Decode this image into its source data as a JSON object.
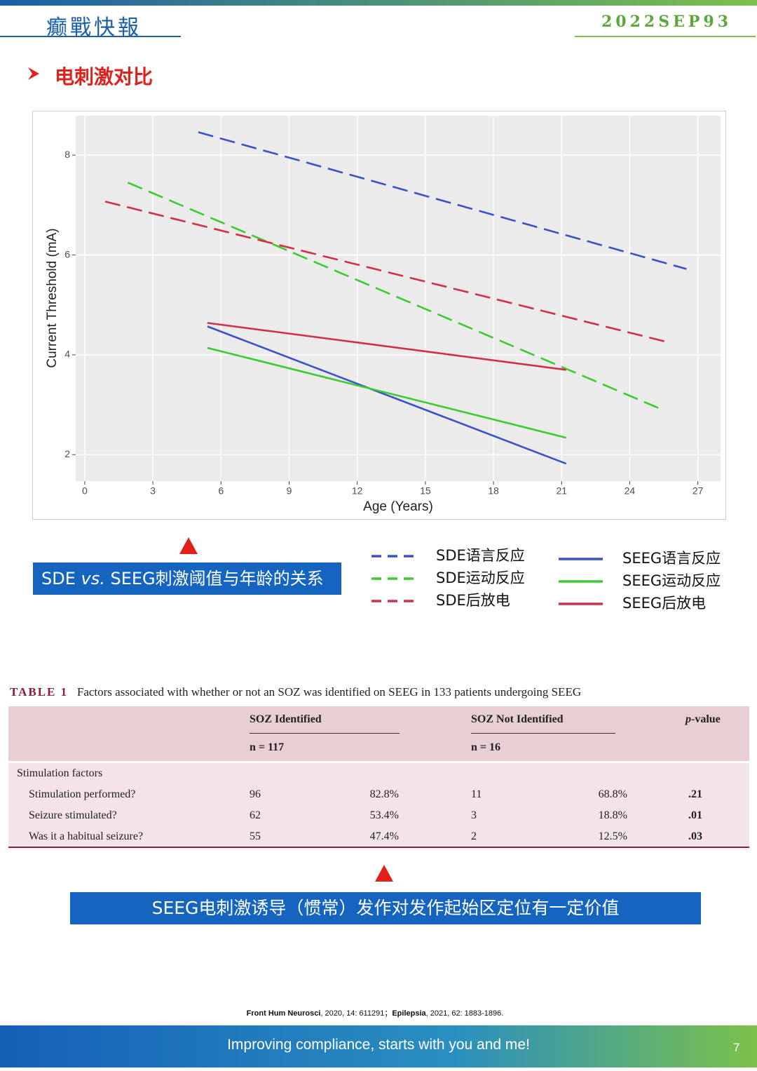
{
  "header": {
    "logo": "癫戰快報",
    "issue": "2022SEP93"
  },
  "section_title": "电刺激对比",
  "chart_data": {
    "type": "line",
    "xlabel": "Age (Years)",
    "ylabel": "Current Threshold (mA)",
    "xlim": [
      -0.4,
      28
    ],
    "ylim": [
      1.47,
      8.79
    ],
    "xticks": [
      0,
      3,
      6,
      9,
      12,
      15,
      18,
      21,
      24,
      27
    ],
    "yticks": [
      2,
      4,
      6,
      8
    ],
    "grid": true,
    "series": [
      {
        "name": "SDE语言反应",
        "color": "#3a53c9",
        "dashed": true,
        "x": [
          5,
          26.5
        ],
        "values": [
          8.46,
          5.72
        ]
      },
      {
        "name": "SDE运动反应",
        "color": "#3ccc2e",
        "dashed": true,
        "x": [
          1.9,
          25.5
        ],
        "values": [
          7.45,
          2.89
        ]
      },
      {
        "name": "SDE后放电",
        "color": "#d0304a",
        "dashed": true,
        "x": [
          0.9,
          25.8
        ],
        "values": [
          7.07,
          4.24
        ]
      },
      {
        "name": "SEEG语言反应",
        "color": "#3a53c9",
        "dashed": false,
        "x": [
          5.4,
          21.2
        ],
        "values": [
          4.57,
          1.82
        ]
      },
      {
        "name": "SEEG运动反应",
        "color": "#3ccc2e",
        "dashed": false,
        "x": [
          5.4,
          21.2
        ],
        "values": [
          4.14,
          2.34
        ]
      },
      {
        "name": "SEEG后放电",
        "color": "#d0304a",
        "dashed": false,
        "x": [
          5.4,
          21.2
        ],
        "values": [
          4.64,
          3.7
        ]
      }
    ]
  },
  "chart_caption": [
    "SDE ",
    "vs.",
    " SEEG刺激阈值与年龄的关系"
  ],
  "table": {
    "label": "TABLE 1",
    "caption": "Factors associated with whether or not an SOZ was identified on SEEG in 133 patients undergoing SEEG",
    "columns": [
      "SOZ Identified",
      "SOZ Not Identified"
    ],
    "p_header": [
      "p",
      "-value"
    ],
    "n": [
      "n = 117",
      "n = 16"
    ],
    "group": "Stimulation factors",
    "rows": [
      [
        "Stimulation performed?",
        "96",
        "82.8%",
        "11",
        "68.8%",
        ".21"
      ],
      [
        "Seizure stimulated?",
        "62",
        "53.4%",
        "3",
        "18.8%",
        ".01"
      ],
      [
        "Was it a habitual seizure?",
        "55",
        "47.4%",
        "2",
        "12.5%",
        ".03"
      ]
    ]
  },
  "conclusion": "SEEG电刺激诱导（惯常）发作对发作起始区定位有一定价值",
  "citation": [
    "Front Hum Neurosci",
    ", 2020, 14: 611291；",
    "Epilepsia",
    ", 2021, 62: 1883-1896."
  ],
  "footer": {
    "slogan": "Improving compliance, starts with you and me!",
    "page": "7"
  }
}
